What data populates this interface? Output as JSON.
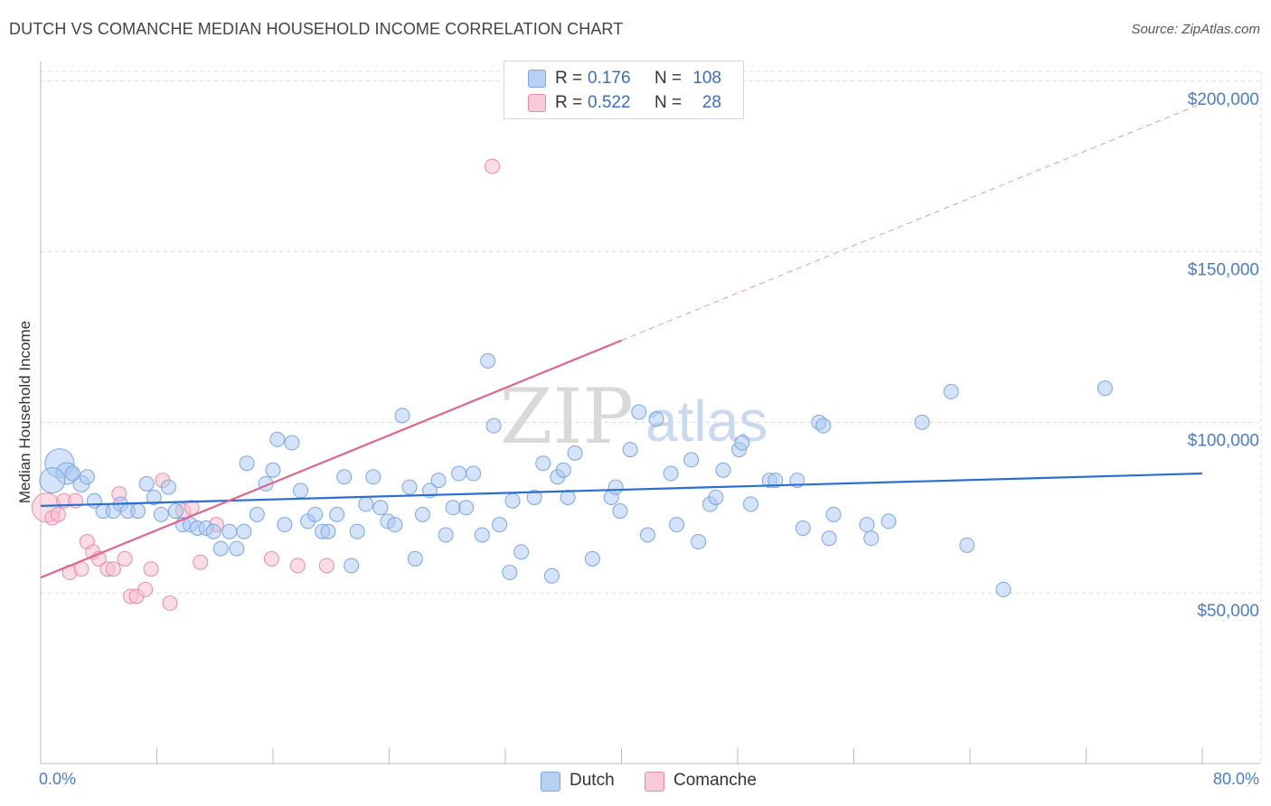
{
  "title": "DUTCH VS COMANCHE MEDIAN HOUSEHOLD INCOME CORRELATION CHART",
  "source": "Source: ZipAtlas.com",
  "watermark": {
    "zip": "ZIP",
    "atlas": "atlas"
  },
  "colors": {
    "dutch_fill": "#a9c8f0",
    "dutch_stroke": "#7aa6e0",
    "dutch_line": "#2a6fd0",
    "comanche_fill": "#f6bfd0",
    "comanche_stroke": "#e98bab",
    "comanche_line": "#e0658e",
    "grid": "#dcdcdc",
    "axis_text": "#4a7cc7"
  },
  "legend": {
    "rows": [
      {
        "series": "Dutch",
        "r_label": "R =",
        "r_value": "0.176",
        "n_label": "N =",
        "n_value": "108"
      },
      {
        "series": "Comanche",
        "r_label": "R =",
        "r_value": "0.522",
        "n_label": "N =",
        "n_value": "28"
      }
    ]
  },
  "bottom_legend": {
    "dutch": "Dutch",
    "comanche": "Comanche"
  },
  "x_axis": {
    "min_label": "0.0%",
    "max_label": "80.0%"
  },
  "chart_data": {
    "type": "scatter",
    "title": "DUTCH VS COMANCHE MEDIAN HOUSEHOLD INCOME CORRELATION CHART",
    "xlabel": "",
    "ylabel": "Median Household Income",
    "xlim": [
      0,
      80
    ],
    "ylim": [
      0,
      210000
    ],
    "y_ticks": [
      {
        "value": 50000,
        "label": "$50,000"
      },
      {
        "value": 100000,
        "label": "$100,000"
      },
      {
        "value": 150000,
        "label": "$150,000"
      },
      {
        "value": 200000,
        "label": "$200,000"
      }
    ],
    "x_ticks": [
      0,
      8,
      16,
      24,
      32,
      40,
      48,
      56,
      64,
      72,
      80
    ],
    "series": [
      {
        "name": "Dutch",
        "trend": {
          "x0": 0,
          "y0": 75500,
          "x1": 80,
          "y1": 85000
        },
        "points": [
          [
            1.3,
            88000,
            16
          ],
          [
            1.8,
            85000,
            12
          ],
          [
            0.8,
            83000,
            14
          ],
          [
            2.8,
            82000,
            9
          ],
          [
            3.2,
            84000,
            8
          ],
          [
            2.2,
            85000,
            8
          ],
          [
            3.7,
            77000,
            8
          ],
          [
            4.3,
            74000,
            8
          ],
          [
            5.0,
            74000,
            8
          ],
          [
            5.5,
            76000,
            8
          ],
          [
            6.0,
            74000,
            8
          ],
          [
            6.7,
            74000,
            8
          ],
          [
            7.3,
            82000,
            8
          ],
          [
            7.8,
            78000,
            8
          ],
          [
            8.3,
            73000,
            8
          ],
          [
            8.8,
            81000,
            8
          ],
          [
            9.3,
            74000,
            8
          ],
          [
            9.8,
            70000,
            8
          ],
          [
            10.3,
            70000,
            8
          ],
          [
            10.8,
            69000,
            8
          ],
          [
            11.4,
            69000,
            8
          ],
          [
            11.9,
            68000,
            8
          ],
          [
            12.4,
            63000,
            8
          ],
          [
            13.0,
            68000,
            8
          ],
          [
            13.5,
            63000,
            8
          ],
          [
            14.0,
            68000,
            8
          ],
          [
            14.2,
            88000,
            8
          ],
          [
            14.9,
            73000,
            8
          ],
          [
            15.5,
            82000,
            8
          ],
          [
            16.0,
            86000,
            8
          ],
          [
            16.3,
            95000,
            8
          ],
          [
            16.8,
            70000,
            8
          ],
          [
            17.3,
            94000,
            8
          ],
          [
            17.9,
            80000,
            8
          ],
          [
            18.4,
            71000,
            8
          ],
          [
            18.9,
            73000,
            8
          ],
          [
            19.4,
            68000,
            8
          ],
          [
            19.8,
            68000,
            8
          ],
          [
            20.4,
            73000,
            8
          ],
          [
            20.9,
            84000,
            8
          ],
          [
            21.4,
            58000,
            8
          ],
          [
            21.8,
            68000,
            8
          ],
          [
            22.4,
            76000,
            8
          ],
          [
            22.9,
            84000,
            8
          ],
          [
            23.4,
            75000,
            8
          ],
          [
            23.9,
            71000,
            8
          ],
          [
            24.4,
            70000,
            8
          ],
          [
            24.9,
            102000,
            8
          ],
          [
            25.4,
            81000,
            8
          ],
          [
            25.8,
            60000,
            8
          ],
          [
            26.3,
            73000,
            8
          ],
          [
            26.8,
            80000,
            8
          ],
          [
            27.4,
            83000,
            8
          ],
          [
            27.9,
            67000,
            8
          ],
          [
            28.4,
            75000,
            8
          ],
          [
            28.8,
            85000,
            8
          ],
          [
            29.3,
            75000,
            8
          ],
          [
            29.8,
            85000,
            8
          ],
          [
            30.4,
            67000,
            8
          ],
          [
            30.8,
            118000,
            8
          ],
          [
            31.2,
            99000,
            8
          ],
          [
            31.6,
            70000,
            8
          ],
          [
            32.3,
            56000,
            8
          ],
          [
            32.5,
            77000,
            8
          ],
          [
            33.1,
            62000,
            8
          ],
          [
            34.0,
            78000,
            8
          ],
          [
            34.6,
            88000,
            8
          ],
          [
            35.2,
            55000,
            8
          ],
          [
            35.6,
            84000,
            8
          ],
          [
            36.0,
            86000,
            8
          ],
          [
            36.3,
            78000,
            8
          ],
          [
            36.8,
            91000,
            8
          ],
          [
            38.0,
            60000,
            8
          ],
          [
            39.3,
            78000,
            8
          ],
          [
            39.6,
            81000,
            8
          ],
          [
            39.9,
            74000,
            8
          ],
          [
            40.6,
            92000,
            8
          ],
          [
            41.2,
            103000,
            8
          ],
          [
            41.8,
            67000,
            8
          ],
          [
            42.4,
            101000,
            8
          ],
          [
            43.4,
            85000,
            8
          ],
          [
            43.8,
            70000,
            8
          ],
          [
            44.8,
            89000,
            8
          ],
          [
            45.3,
            65000,
            8
          ],
          [
            46.1,
            76000,
            8
          ],
          [
            46.5,
            78000,
            8
          ],
          [
            47.0,
            86000,
            8
          ],
          [
            48.1,
            92000,
            8
          ],
          [
            48.3,
            94000,
            8
          ],
          [
            48.9,
            76000,
            8
          ],
          [
            50.2,
            83000,
            8
          ],
          [
            50.6,
            83000,
            8
          ],
          [
            52.1,
            83000,
            8
          ],
          [
            52.5,
            69000,
            8
          ],
          [
            53.6,
            100000,
            8
          ],
          [
            53.9,
            99000,
            8
          ],
          [
            54.3,
            66000,
            8
          ],
          [
            54.6,
            73000,
            8
          ],
          [
            56.9,
            70000,
            8
          ],
          [
            57.2,
            66000,
            8
          ],
          [
            58.4,
            71000,
            8
          ],
          [
            60.7,
            100000,
            8
          ],
          [
            62.7,
            109000,
            8
          ],
          [
            63.8,
            64000,
            8
          ],
          [
            66.3,
            51000,
            8
          ],
          [
            73.3,
            110000,
            8
          ]
        ]
      },
      {
        "name": "Comanche",
        "trend": {
          "x0": 0,
          "y0": 54500,
          "x1": 40,
          "y1": 124000
        },
        "trend_extension": {
          "x0": 40,
          "y0": 124000,
          "x1": 80,
          "y1": 193500
        },
        "points": [
          [
            0.4,
            75000,
            16
          ],
          [
            0.8,
            72000,
            8
          ],
          [
            1.2,
            73000,
            8
          ],
          [
            1.6,
            77000,
            8
          ],
          [
            2.0,
            56000,
            8
          ],
          [
            2.4,
            77000,
            8
          ],
          [
            2.8,
            57000,
            8
          ],
          [
            3.2,
            65000,
            8
          ],
          [
            3.6,
            62000,
            8
          ],
          [
            4.0,
            60000,
            8
          ],
          [
            4.6,
            57000,
            8
          ],
          [
            5.0,
            57000,
            8
          ],
          [
            5.4,
            79000,
            8
          ],
          [
            5.8,
            60000,
            8
          ],
          [
            6.2,
            49000,
            8
          ],
          [
            6.6,
            49000,
            8
          ],
          [
            7.2,
            51000,
            8
          ],
          [
            7.6,
            57000,
            8
          ],
          [
            8.4,
            83000,
            8
          ],
          [
            8.9,
            47000,
            8
          ],
          [
            9.8,
            74000,
            8
          ],
          [
            10.4,
            75000,
            8
          ],
          [
            11.0,
            59000,
            8
          ],
          [
            12.1,
            70000,
            8
          ],
          [
            15.9,
            60000,
            8
          ],
          [
            17.7,
            58000,
            8
          ],
          [
            19.7,
            58000,
            8
          ],
          [
            31.1,
            175000,
            8
          ]
        ]
      }
    ]
  }
}
